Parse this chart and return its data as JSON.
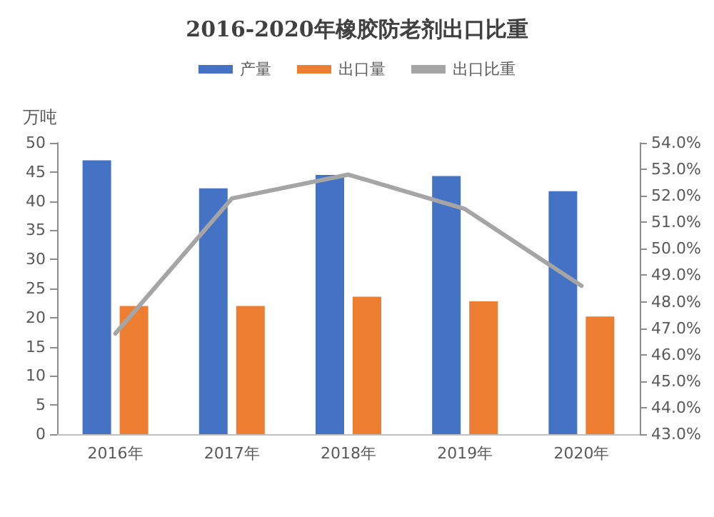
{
  "chart_data": {
    "type": "bar",
    "title": "2016-2020年橡胶防老剂出口比重",
    "ylabel": "万吨",
    "categories": [
      "2016年",
      "2017年",
      "2018年",
      "2019年",
      "2020年"
    ],
    "series": [
      {
        "name": "产量",
        "color": "#4472c4",
        "values": [
          47.0,
          42.2,
          44.5,
          44.3,
          41.7
        ]
      },
      {
        "name": "出口量",
        "color": "#ed7d31",
        "values": [
          22.0,
          22.0,
          23.6,
          22.8,
          20.2
        ]
      },
      {
        "name": "出口比重",
        "type": "line",
        "axis": "y2",
        "color": "#a5a5a5",
        "values": [
          46.8,
          51.9,
          52.8,
          51.5,
          48.6
        ]
      }
    ],
    "ylim": [
      0,
      50
    ],
    "yticks": [
      0,
      5,
      10,
      15,
      20,
      25,
      30,
      35,
      40,
      45,
      50
    ],
    "y2lim": [
      43,
      54
    ],
    "y2ticks": [
      {
        "value": 43,
        "label": "43.0%"
      },
      {
        "value": 44,
        "label": "44.0%"
      },
      {
        "value": 45,
        "label": "45.0%"
      },
      {
        "value": 46,
        "label": "46.0%"
      },
      {
        "value": 47,
        "label": "47.0%"
      },
      {
        "value": 48,
        "label": "48.0%"
      },
      {
        "value": 49,
        "label": "49.0%"
      },
      {
        "value": 50,
        "label": "50.0%"
      },
      {
        "value": 51,
        "label": "51.0%"
      },
      {
        "value": 52,
        "label": "52.0%"
      },
      {
        "value": 53,
        "label": "53.0%"
      },
      {
        "value": 54,
        "label": "54.0%"
      }
    ],
    "legend": "top",
    "grid": false,
    "marker": "none"
  }
}
